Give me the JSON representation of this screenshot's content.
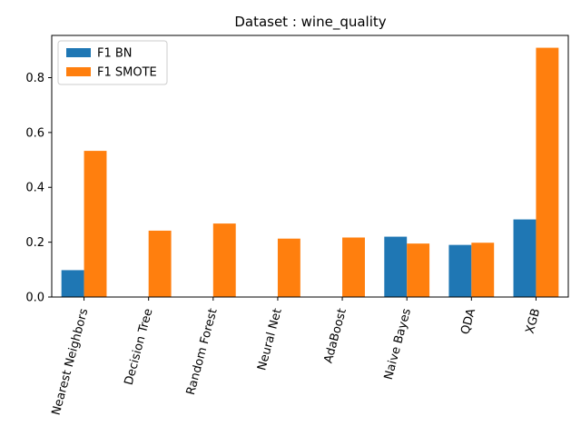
{
  "chart_data": {
    "type": "bar",
    "title": "Dataset : wine_quality",
    "xlabel": "",
    "ylabel": "",
    "categories": [
      "Nearest Neighbors",
      "Decision Tree",
      "Random Forest",
      "Neural Net",
      "AdaBoost",
      "Naive Bayes",
      "QDA",
      "XGB"
    ],
    "series": [
      {
        "name": "F1 BN",
        "color": "#1f77b4",
        "values": [
          0.098,
          0,
          0,
          0,
          0,
          0.22,
          0.19,
          0.283
        ]
      },
      {
        "name": "F1 SMOTE",
        "color": "#ff7f0e",
        "values": [
          0.533,
          0.242,
          0.268,
          0.213,
          0.217,
          0.195,
          0.198,
          0.909
        ]
      }
    ],
    "ylim": [
      0,
      0.954
    ],
    "yticks": [
      0.0,
      0.2,
      0.4,
      0.6,
      0.8
    ],
    "ytick_labels": [
      "0.0",
      "0.2",
      "0.4",
      "0.6",
      "0.8"
    ],
    "legend_position": "upper-left",
    "grid": false
  }
}
